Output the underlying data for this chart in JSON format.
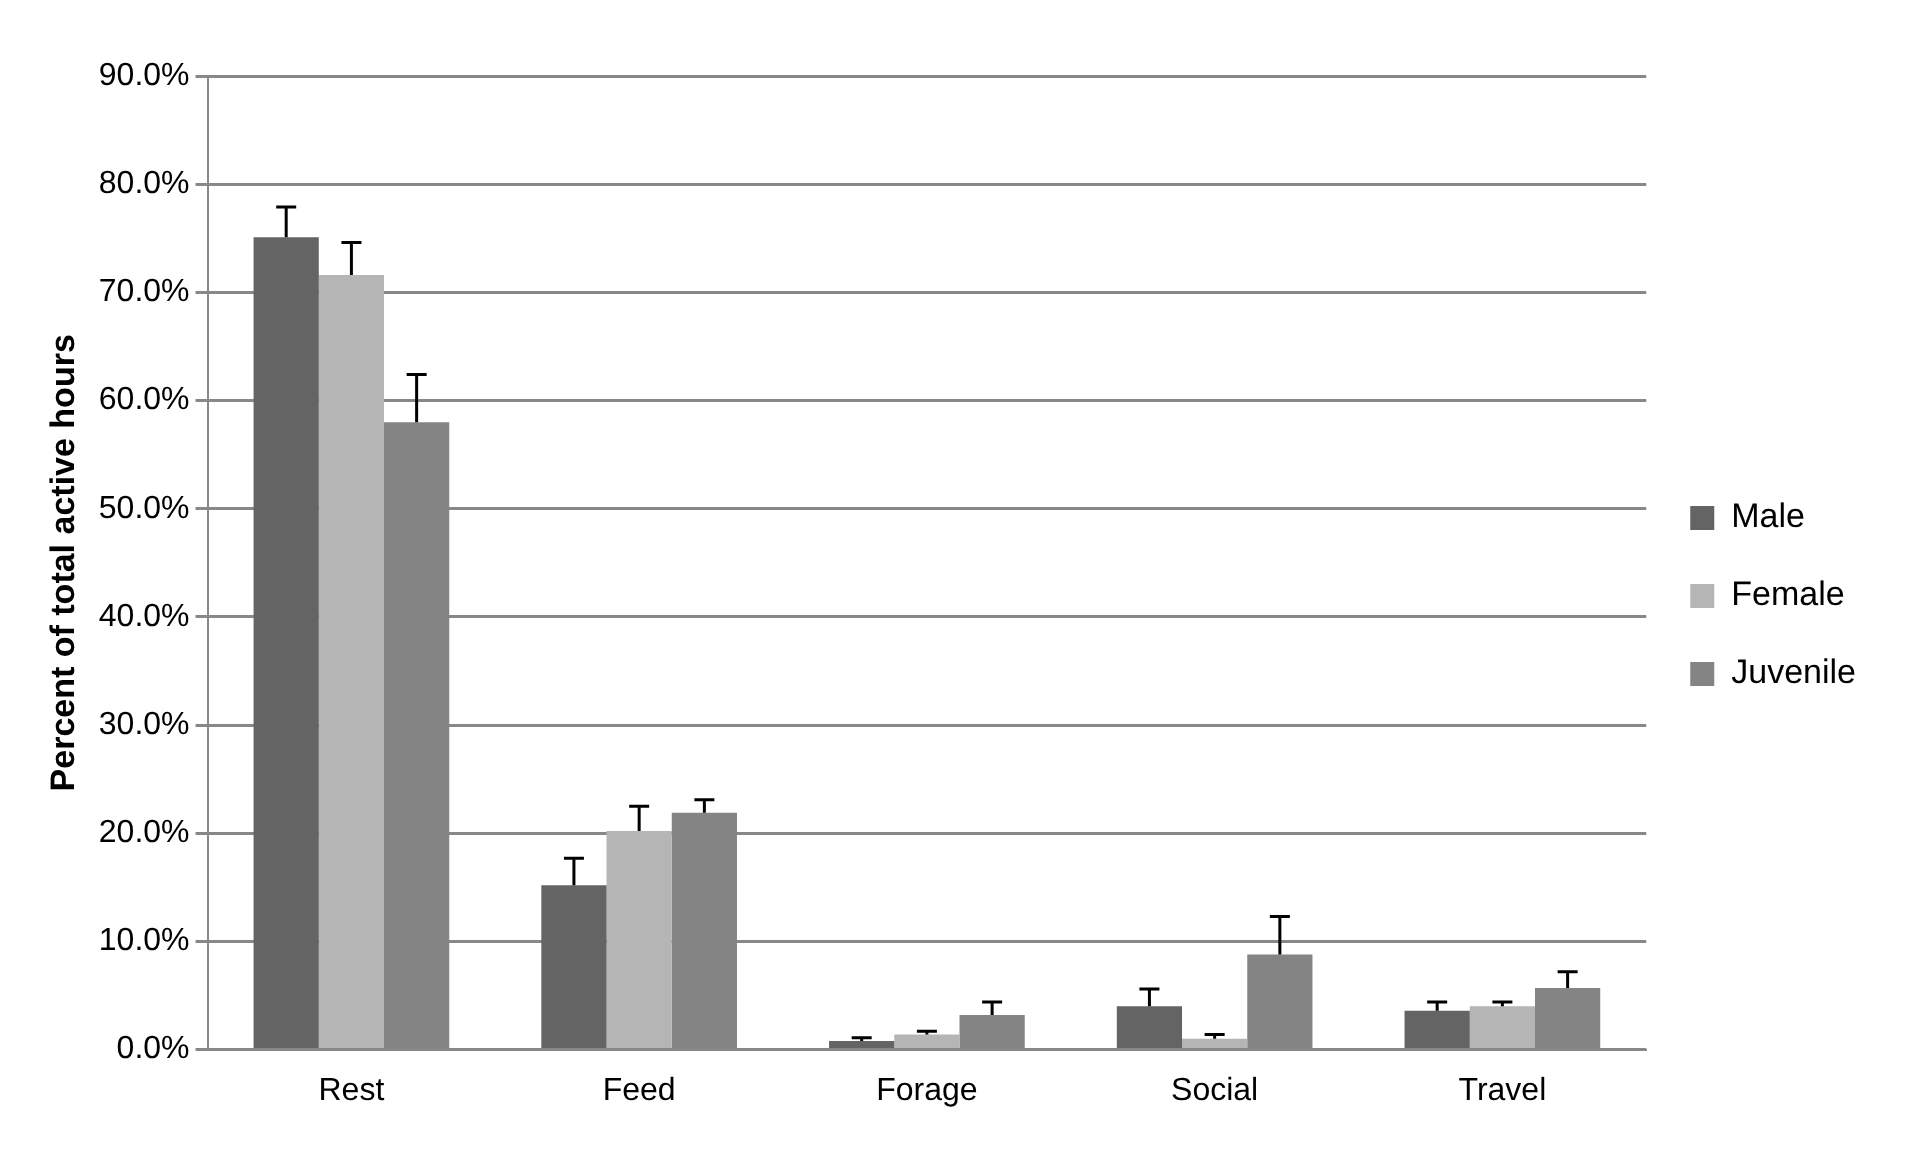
{
  "chart_data": {
    "type": "bar",
    "ylabel": "Percent of total active hours",
    "categories": [
      "Rest",
      "Feed",
      "Forage",
      "Social",
      "Travel"
    ],
    "series": [
      {
        "name": "Male",
        "color": "#646464",
        "values": [
          75.1,
          15.2,
          0.8,
          4.0,
          3.6
        ],
        "errors": [
          [
            75.1,
            77.9
          ],
          [
            15.2,
            17.7
          ],
          [
            0.8,
            1.1
          ],
          [
            4.0,
            5.6
          ],
          [
            3.6,
            4.4
          ]
        ]
      },
      {
        "name": "Female",
        "color": "#b4b5b4",
        "values": [
          71.6,
          20.2,
          1.4,
          1.0,
          4.0
        ],
        "errors": [
          [
            71.6,
            74.6
          ],
          [
            20.2,
            22.5
          ],
          [
            1.4,
            1.7
          ],
          [
            1.0,
            1.4
          ],
          [
            4.0,
            4.4
          ]
        ]
      },
      {
        "name": "Juvenile",
        "color": "#838483",
        "values": [
          58.0,
          21.9,
          3.2,
          8.8,
          5.7
        ],
        "errors": [
          [
            58.0,
            62.4
          ],
          [
            21.9,
            23.1
          ],
          [
            3.2,
            4.4
          ],
          [
            8.8,
            12.3
          ],
          [
            5.7,
            7.2
          ]
        ]
      }
    ],
    "ylim": [
      0,
      90
    ],
    "yticks": [
      {
        "value": 0,
        "label": "0.0%"
      },
      {
        "value": 10,
        "label": "10.0%"
      },
      {
        "value": 20,
        "label": "20.0%"
      },
      {
        "value": 30,
        "label": "30.0%"
      },
      {
        "value": 40,
        "label": "40.0%"
      },
      {
        "value": 50,
        "label": "50.0%"
      },
      {
        "value": 60,
        "label": "60.0%"
      },
      {
        "value": 70,
        "label": "70.0%"
      },
      {
        "value": 80,
        "label": "80.0%"
      },
      {
        "value": 90,
        "label": "90.0%"
      }
    ],
    "grid": "y",
    "legend": "right"
  }
}
